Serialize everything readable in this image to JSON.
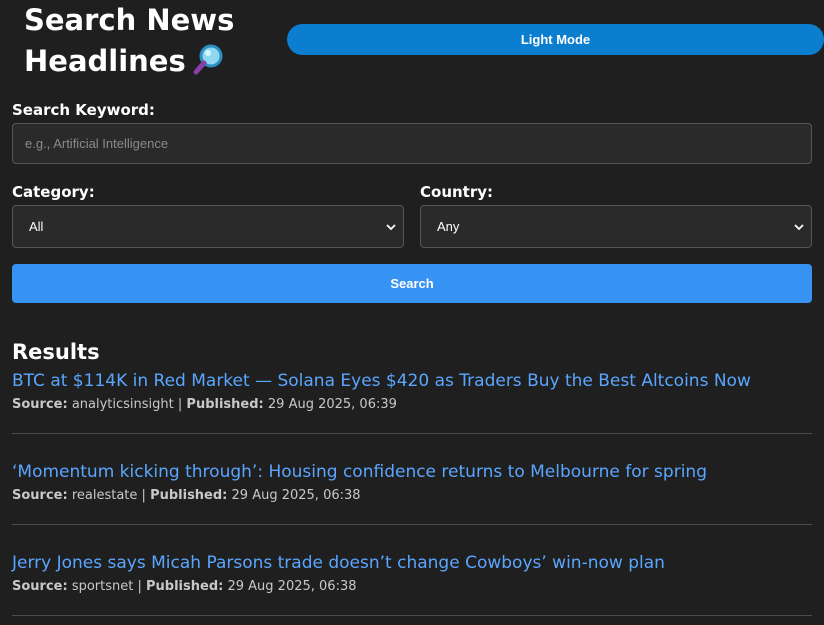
{
  "header": {
    "title": "Search News Headlines",
    "mode_button": "Light Mode"
  },
  "form": {
    "keyword_label": "Search Keyword:",
    "keyword_placeholder": "e.g., Artificial Intelligence",
    "keyword_value": "",
    "category_label": "Category:",
    "category_value": "All",
    "country_label": "Country:",
    "country_value": "Any",
    "search_button": "Search"
  },
  "results": {
    "heading": "Results",
    "source_label": "Source:",
    "published_label": "Published:",
    "items": [
      {
        "title": "BTC at $114K in Red Market — Solana Eyes $420 as Traders Buy the Best Altcoins Now",
        "source": "analyticsinsight",
        "published": "29 Aug 2025, 06:39"
      },
      {
        "title": "‘Momentum kicking through’: Housing confidence returns to Melbourne for spring",
        "source": "realestate",
        "published": "29 Aug 2025, 06:38"
      },
      {
        "title": "Jerry Jones says Micah Parsons trade doesn’t change Cowboys’ win-now plan",
        "source": "sportsnet",
        "published": "29 Aug 2025, 06:38"
      }
    ]
  },
  "colors": {
    "background": "#1f1f1f",
    "mode_button": "#0b7ed0",
    "search_button": "#3793f3",
    "link": "#5aa6ff"
  }
}
